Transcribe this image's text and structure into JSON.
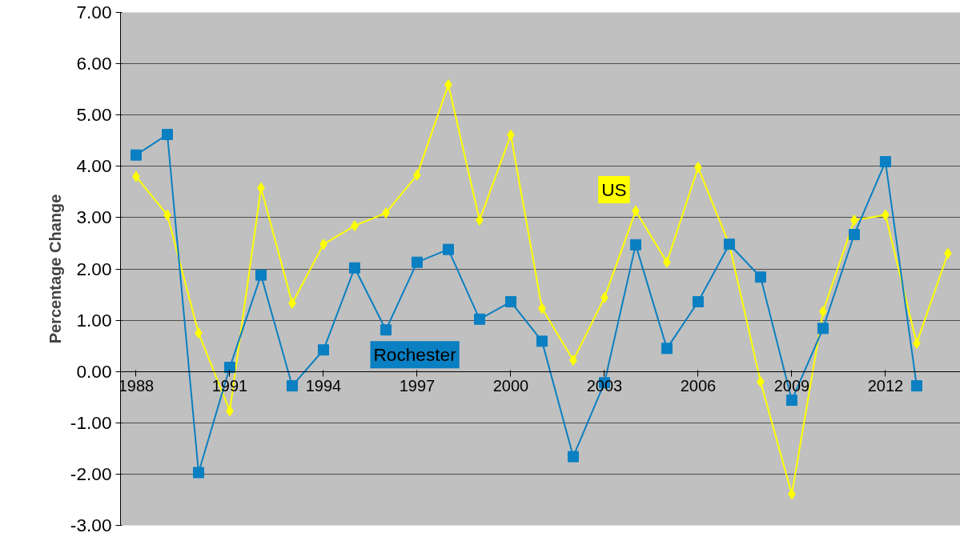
{
  "chart_data": {
    "type": "line",
    "ylabel": "Percentage Change",
    "x": [
      1988,
      1989,
      1990,
      1991,
      1992,
      1993,
      1994,
      1995,
      1996,
      1997,
      1998,
      1999,
      2000,
      2001,
      2002,
      2003,
      2004,
      2005,
      2006,
      2007,
      2008,
      2009,
      2010,
      2011,
      2012,
      2013,
      2014
    ],
    "series": [
      {
        "name": "US",
        "color": "#ffff00",
        "marker": "diamond",
        "values": [
          3.8,
          3.05,
          0.75,
          -0.77,
          3.58,
          1.33,
          2.48,
          2.84,
          3.09,
          3.83,
          5.59,
          2.95,
          4.61,
          1.23,
          0.22,
          1.44,
          3.13,
          2.13,
          3.98,
          2.47,
          -0.2,
          -2.39,
          1.17,
          2.95,
          3.05,
          0.55,
          2.3
        ]
      },
      {
        "name": "Rochester",
        "color": "#0a7fc1",
        "marker": "square",
        "values": [
          4.22,
          4.62,
          -1.97,
          0.08,
          1.88,
          -0.28,
          0.42,
          2.02,
          0.81,
          2.13,
          2.38,
          1.02,
          1.36,
          0.59,
          -1.66,
          -0.22,
          2.47,
          0.45,
          1.36,
          2.48,
          1.84,
          -0.56,
          0.84,
          2.67,
          4.09,
          -0.28,
          null
        ]
      }
    ],
    "xlim": [
      1987.5,
      2014.4
    ],
    "xticks": [
      1988,
      1991,
      1994,
      1997,
      2000,
      2003,
      2006,
      2009,
      2012
    ],
    "ylim": [
      -3,
      7
    ],
    "yticks": [
      {
        "value": -3,
        "label": "-3.00"
      },
      {
        "value": -2,
        "label": "-2.00"
      },
      {
        "value": -1,
        "label": "-1.00"
      },
      {
        "value": 0,
        "label": "0.00"
      },
      {
        "value": 1,
        "label": "1.00"
      },
      {
        "value": 2,
        "label": "2.00"
      },
      {
        "value": 3,
        "label": "3.00"
      },
      {
        "value": 4,
        "label": "4.00"
      },
      {
        "value": 5,
        "label": "5.00"
      },
      {
        "value": 6,
        "label": "6.00"
      },
      {
        "value": 7,
        "label": "7.00"
      }
    ],
    "grid": "y"
  }
}
